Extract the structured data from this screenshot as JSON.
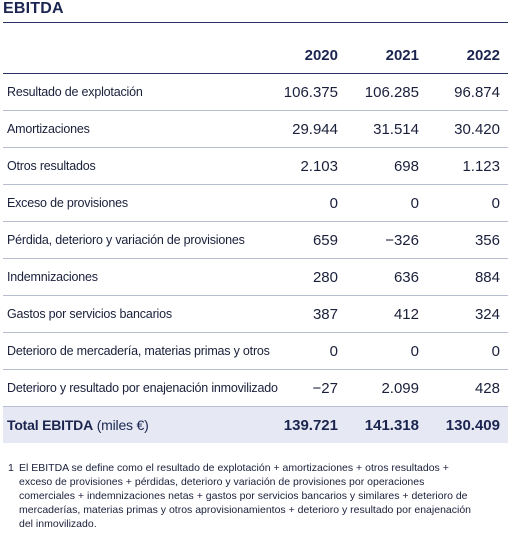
{
  "title": "EBITDA",
  "years": [
    "2020",
    "2021",
    "2022"
  ],
  "rows": [
    {
      "label": "Resultado de explotación",
      "values": [
        "106.375",
        "106.285",
        "96.874"
      ]
    },
    {
      "label": "Amortizaciones",
      "values": [
        "29.944",
        "31.514",
        "30.420"
      ]
    },
    {
      "label": "Otros resultados",
      "values": [
        "2.103",
        "698",
        "1.123"
      ]
    },
    {
      "label": "Exceso de provisiones",
      "values": [
        "0",
        "0",
        "0"
      ]
    },
    {
      "label": "Pérdida, deterioro y variación de provisiones",
      "values": [
        "659",
        "−326",
        "356"
      ]
    },
    {
      "label": "Indemnizaciones",
      "values": [
        "280",
        "636",
        "884"
      ]
    },
    {
      "label": "Gastos por servicios bancarios",
      "values": [
        "387",
        "412",
        "324"
      ]
    },
    {
      "label": "Deterioro de mercadería, materias primas y otros",
      "values": [
        "0",
        "0",
        "0"
      ]
    },
    {
      "label": "Deterioro y resultado por enajenación inmovilizado",
      "values": [
        "−27",
        "2.099",
        "428"
      ]
    }
  ],
  "total": {
    "label": "Total EBITDA",
    "unit": "(miles €)",
    "values": [
      "139.721",
      "141.318",
      "130.409"
    ]
  },
  "footnote": {
    "marker": "1",
    "text": "El EBITDA se define como el resultado de explotación + amortizaciones + otros resultados + exceso de provisiones + pérdidas, deterioro y variación de provisiones por operaciones comerciales + indemnizaciones netas + gastos por servicios bancarios y similares + deterioro de mercaderías, materias primas y otros aprovisionamientos + deterioro y resultado por enajenación del inmovilizado."
  }
}
